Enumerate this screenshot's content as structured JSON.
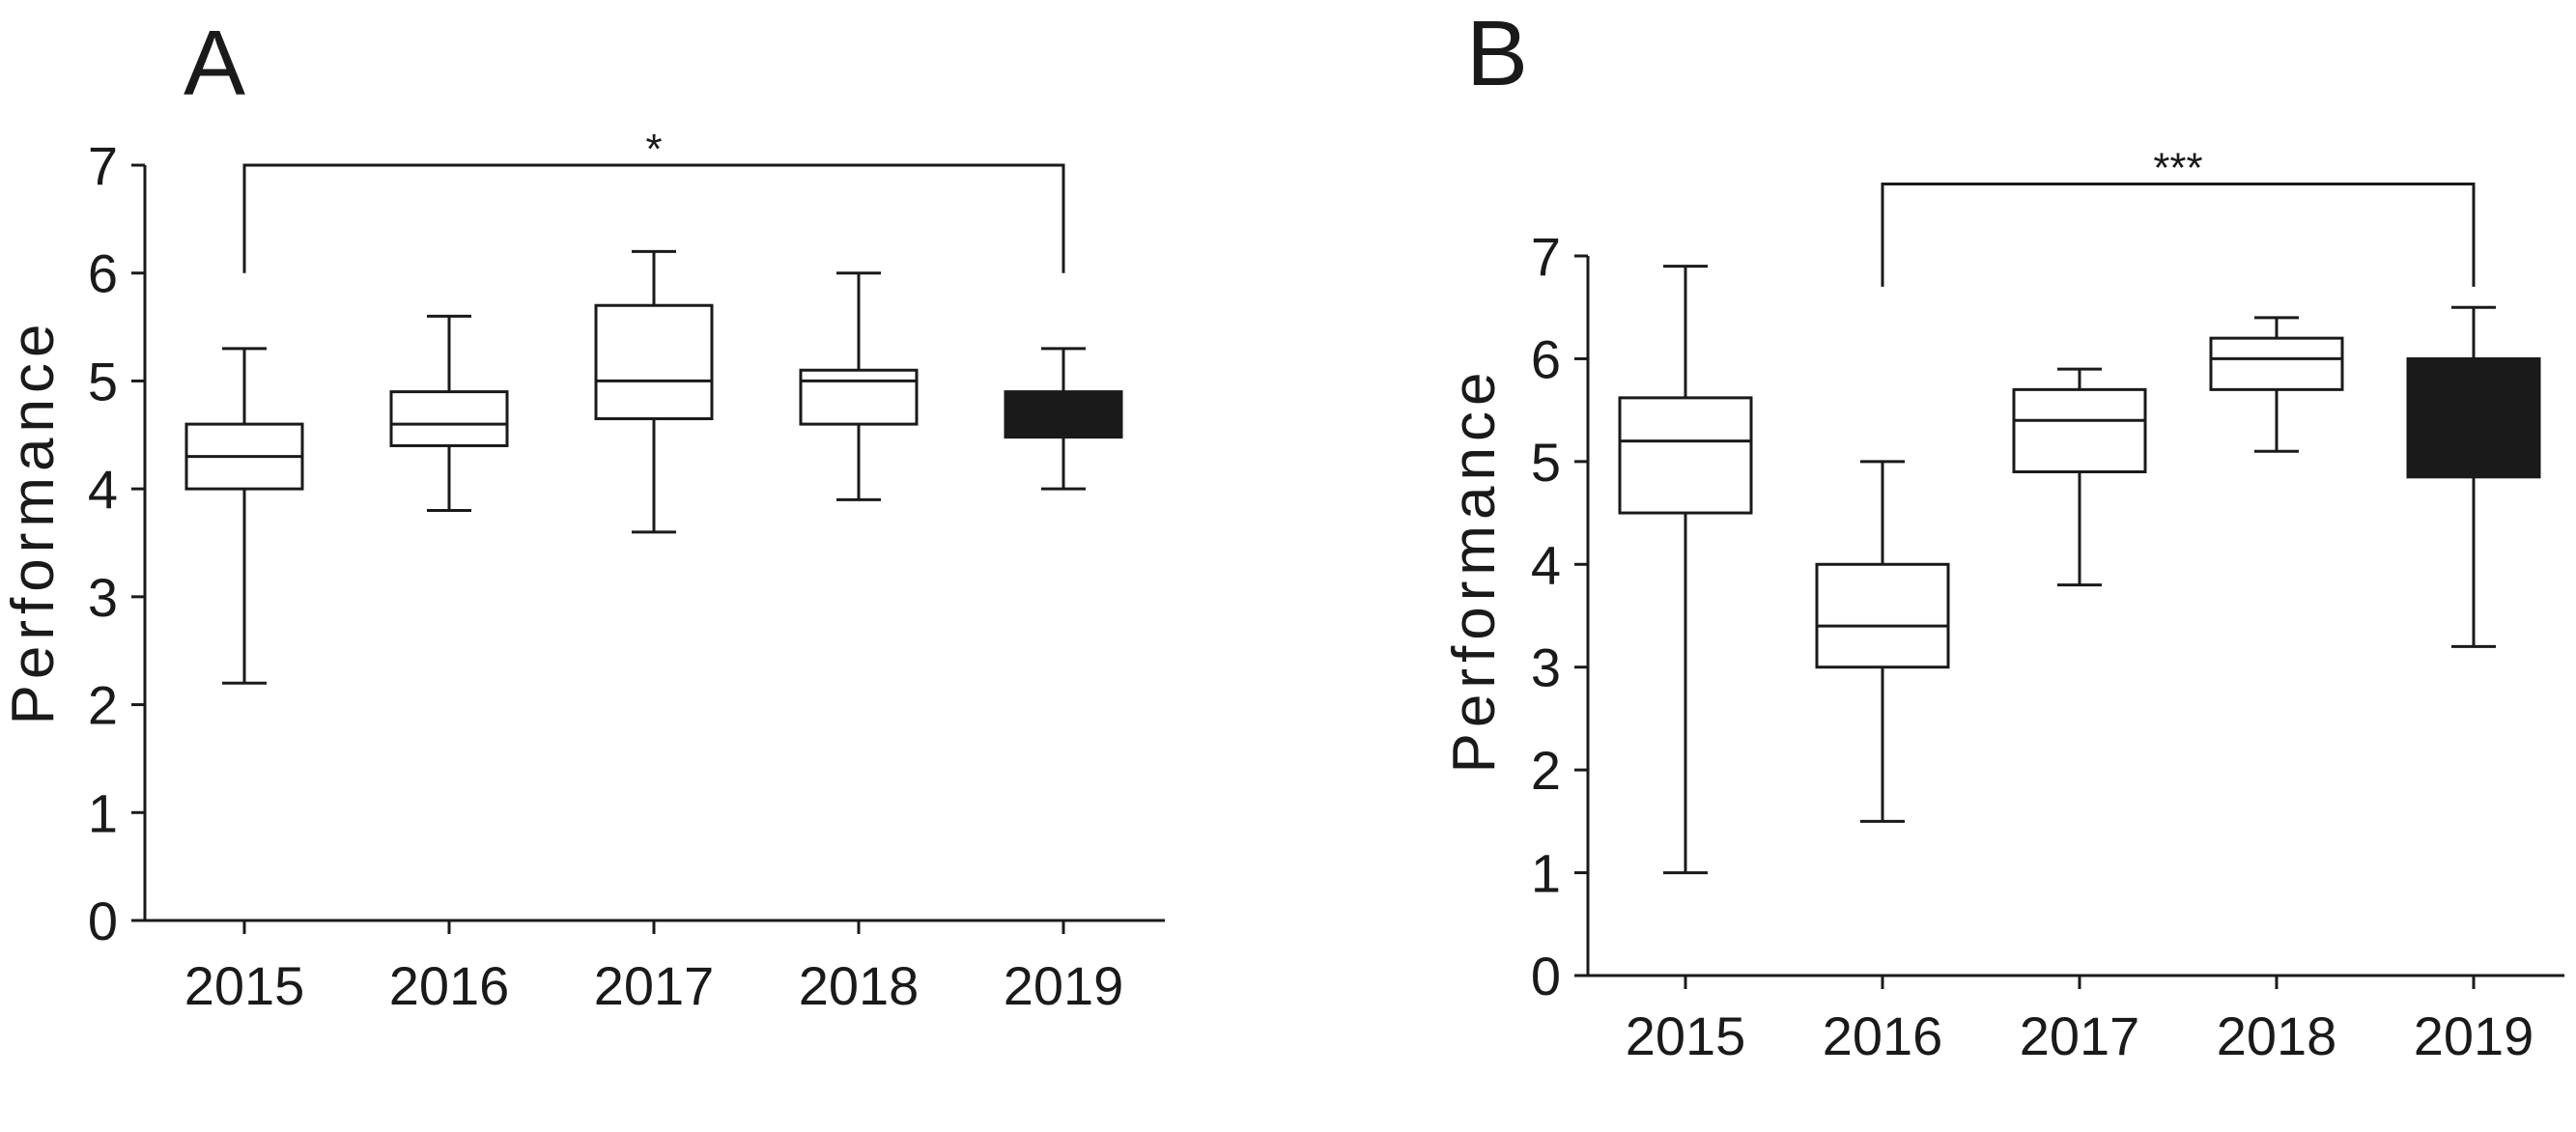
{
  "chart_data": [
    {
      "type": "box",
      "panel_label": "A",
      "ylabel": "Performance",
      "ylim": [
        0,
        7
      ],
      "yticks": [
        "0",
        "1",
        "2",
        "3",
        "4",
        "5",
        "6",
        "7"
      ],
      "categories": [
        "2015",
        "2016",
        "2017",
        "2018",
        "2019"
      ],
      "boxes": [
        {
          "category": "2015",
          "min": 2.2,
          "q1": 4.0,
          "median": 4.3,
          "q3": 4.6,
          "max": 5.3,
          "fill": "#ffffff"
        },
        {
          "category": "2016",
          "min": 3.8,
          "q1": 4.4,
          "median": 4.6,
          "q3": 4.9,
          "max": 5.6,
          "fill": "#ffffff"
        },
        {
          "category": "2017",
          "min": 3.6,
          "q1": 4.65,
          "median": 5.0,
          "q3": 5.7,
          "max": 6.2,
          "fill": "#ffffff"
        },
        {
          "category": "2018",
          "min": 3.9,
          "q1": 4.6,
          "median": 5.0,
          "q3": 5.1,
          "max": 6.0,
          "fill": "#ffffff"
        },
        {
          "category": "2019",
          "min": 4.0,
          "q1": 4.48,
          "median": 4.7,
          "q3": 4.9,
          "max": 5.3,
          "fill": "#1a1a1a"
        }
      ],
      "significance": {
        "from": "2015",
        "to": "2019",
        "label": "*",
        "y": 7.0,
        "drop_to": 6.0
      }
    },
    {
      "type": "box",
      "panel_label": "B",
      "ylabel": "Performance",
      "ylim": [
        0,
        7
      ],
      "yticks": [
        "0",
        "1",
        "2",
        "3",
        "4",
        "5",
        "6",
        "7"
      ],
      "categories": [
        "2015",
        "2016",
        "2017",
        "2018",
        "2019"
      ],
      "boxes": [
        {
          "category": "2015",
          "min": 1.0,
          "q1": 4.5,
          "median": 5.2,
          "q3": 5.62,
          "max": 6.9,
          "fill": "#ffffff"
        },
        {
          "category": "2016",
          "min": 1.5,
          "q1": 3.0,
          "median": 3.4,
          "q3": 4.0,
          "max": 5.0,
          "fill": "#ffffff"
        },
        {
          "category": "2017",
          "min": 3.8,
          "q1": 4.9,
          "median": 5.4,
          "q3": 5.7,
          "max": 5.9,
          "fill": "#ffffff"
        },
        {
          "category": "2018",
          "min": 5.1,
          "q1": 5.7,
          "median": 6.0,
          "q3": 6.2,
          "max": 6.4,
          "fill": "#ffffff"
        },
        {
          "category": "2019",
          "min": 3.2,
          "q1": 4.85,
          "median": 5.45,
          "q3": 6.0,
          "max": 6.5,
          "fill": "#1a1a1a"
        }
      ],
      "significance": {
        "from": "2016",
        "to": "2019",
        "label": "***",
        "y": 7.7,
        "drop_to": 6.7
      }
    }
  ]
}
